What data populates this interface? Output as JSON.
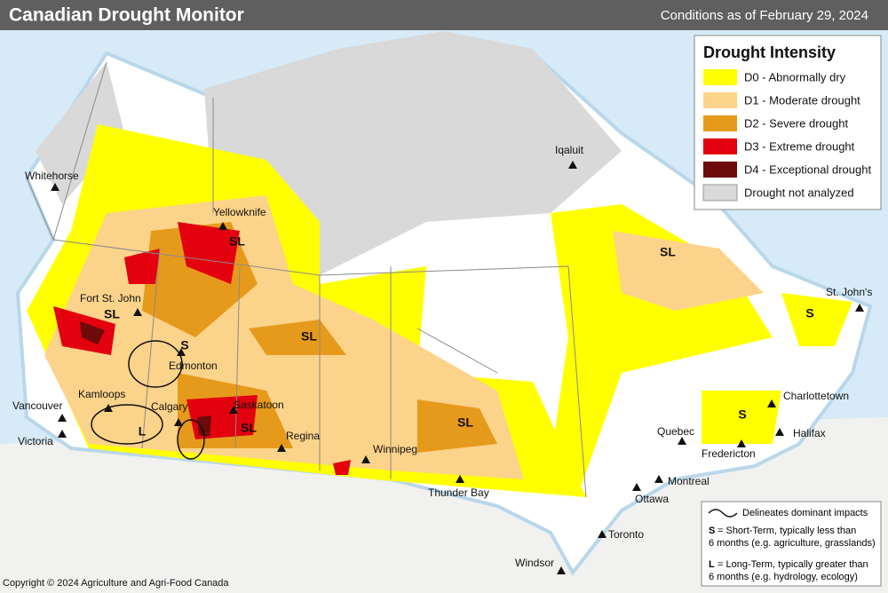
{
  "header": {
    "title": "Canadian Drought Monitor",
    "date": "Conditions as of February 29, 2024"
  },
  "legend": {
    "title": "Drought Intensity",
    "items": [
      {
        "label": "D0 - Abnormally dry",
        "color": "#ffff00"
      },
      {
        "label": "D1 - Moderate drought",
        "color": "#fcd38a"
      },
      {
        "label": "D2 - Severe drought",
        "color": "#e69a1c"
      },
      {
        "label": "D3 - Extreme drought",
        "color": "#e3000f"
      },
      {
        "label": "D4 - Exceptional drought",
        "color": "#6d0a0a"
      },
      {
        "label": "Drought not analyzed",
        "color": "#d9d9d9"
      }
    ]
  },
  "cities": [
    "Whitehorse",
    "Yellowknife",
    "Iqaluit",
    "Fort St. John",
    "Edmonton",
    "Kamloops",
    "Calgary",
    "Saskatoon",
    "Regina",
    "Vancouver",
    "Victoria",
    "Winnipeg",
    "Thunder Bay",
    "St. John's",
    "Charlottetown",
    "Halifax",
    "Quebec",
    "Fredericton",
    "Montreal",
    "Ottawa",
    "Toronto",
    "Windsor"
  ],
  "impacts": [
    "SL",
    "SL",
    "SL",
    "S",
    "L",
    "SL",
    "SL",
    "SL",
    "S",
    "S"
  ],
  "notes": {
    "outline": "Delineates dominant impacts",
    "short_key": "S",
    "short_text": "= Short-Term, typically less than",
    "short_text2": "6 months (e.g. agriculture, grasslands)",
    "long_key": "L",
    "long_text": "= Long-Term, typically greater  than",
    "long_text2": "6 months (e.g. hydrology, ecology)"
  },
  "copyright": "Copyright © 2024 Agriculture and Agri-Food Canada"
}
